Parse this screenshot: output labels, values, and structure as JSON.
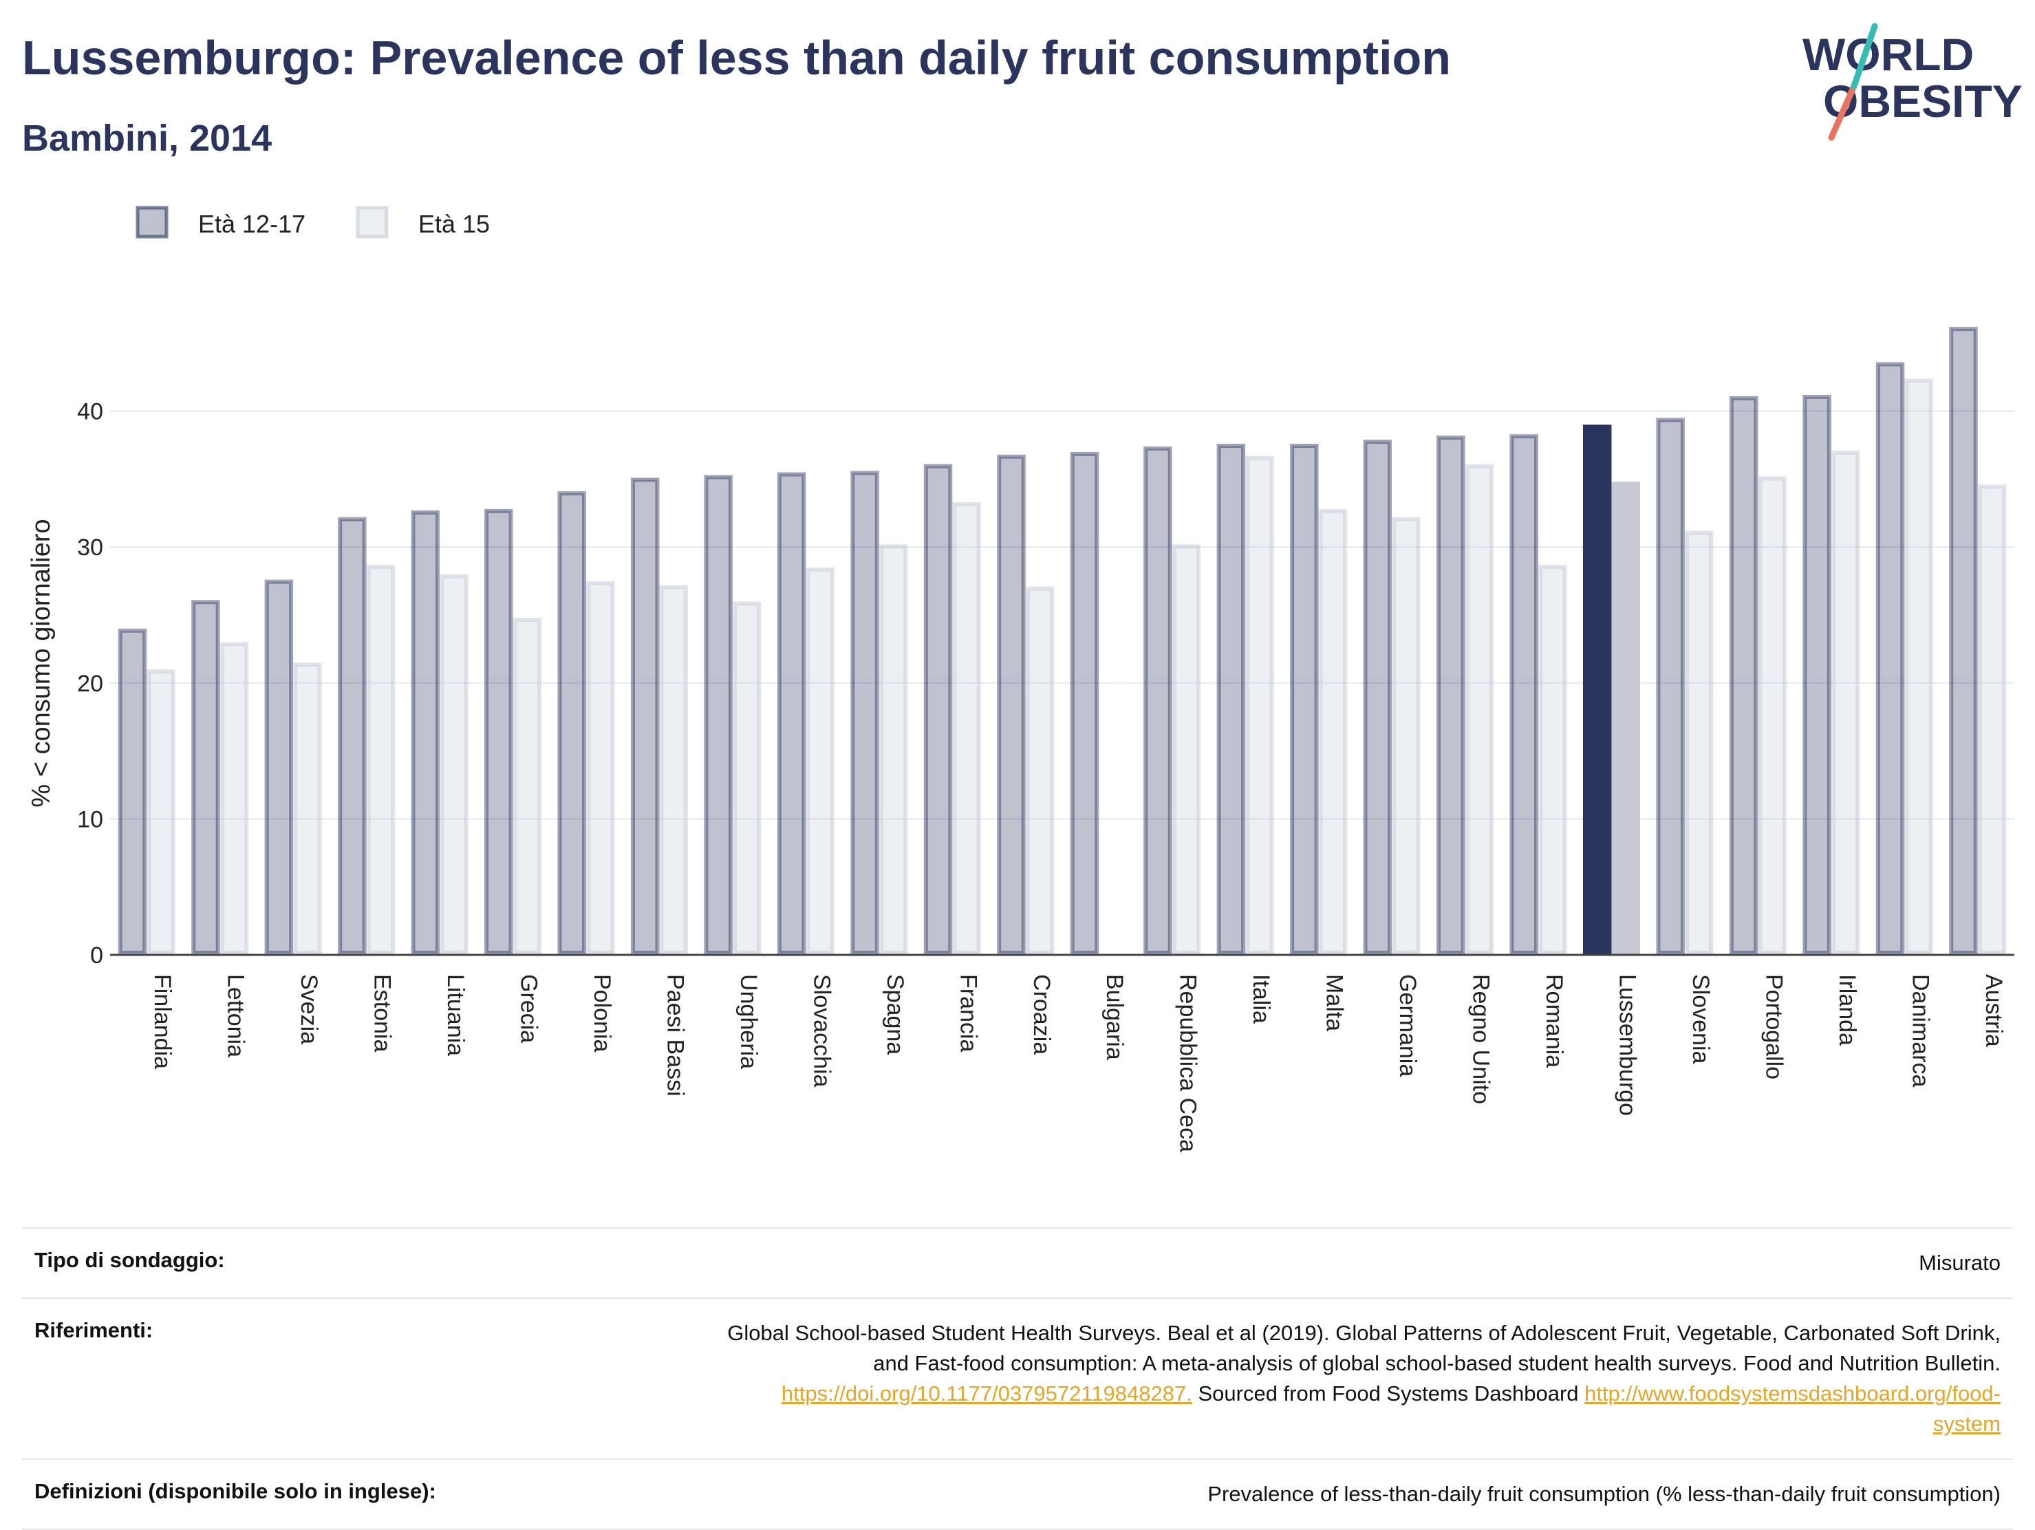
{
  "header": {
    "title": "Lussemburgo: Prevalence of less than daily fruit consumption",
    "subtitle": "Bambini, 2014"
  },
  "logo": {
    "line1": "WORLD",
    "line2": "OBESITY"
  },
  "colors": {
    "series1": "#2a345d",
    "series2": "#c8cad6",
    "highlight": "#2a345d",
    "link": "#e8a427"
  },
  "chart_data": {
    "type": "bar",
    "ylabel": "% < consumo giornaliero",
    "ylim": [
      0,
      50
    ],
    "yticks": [
      0,
      10,
      20,
      30,
      40
    ],
    "grid": true,
    "legend_position": "top-left",
    "highlight_category": "Lussemburgo",
    "categories": [
      "Finlandia",
      "Lettonia",
      "Svezia",
      "Estonia",
      "Lituania",
      "Grecia",
      "Polonia",
      "Paesi Bassi",
      "Ungheria",
      "Slovacchia",
      "Spagna",
      "Francia",
      "Croazia",
      "Bulgaria",
      "Repubblica Ceca",
      "Italia",
      "Malta",
      "Germania",
      "Regno Unito",
      "Romania",
      "Lussemburgo",
      "Slovenia",
      "Portogallo",
      "Irlanda",
      "Danimarca",
      "Austria"
    ],
    "series": [
      {
        "name": "Età 12-17",
        "values": [
          24.0,
          26.1,
          27.6,
          32.2,
          32.7,
          32.8,
          34.1,
          35.1,
          35.3,
          35.5,
          35.6,
          36.1,
          36.8,
          37.0,
          37.4,
          37.6,
          37.6,
          37.9,
          38.2,
          38.3,
          39.0,
          39.5,
          41.1,
          41.2,
          43.6,
          46.2
        ]
      },
      {
        "name": "Età 15",
        "values": [
          21.0,
          23.0,
          21.5,
          28.7,
          28.0,
          24.8,
          27.5,
          27.2,
          26.0,
          28.5,
          30.2,
          33.3,
          27.1,
          null,
          30.2,
          36.7,
          32.8,
          32.2,
          36.1,
          28.7,
          34.8,
          31.2,
          35.2,
          37.1,
          42.4,
          34.6
        ]
      }
    ]
  },
  "meta": {
    "survey_type_label": "Tipo di sondaggio:",
    "survey_type_value": "Misurato",
    "references_label": "Riferimenti:",
    "references_text1": "Global School-based Student Health Surveys. Beal et al (2019). Global Patterns of Adolescent Fruit, Vegetable, Carbonated Soft Drink,",
    "references_text2": "and Fast-food consumption: A meta-analysis of global school-based student health surveys. Food and Nutrition Bulletin.",
    "references_link1": "https://doi.org/10.1177/0379572119848287.",
    "references_text3": " Sourced from Food Systems Dashboard ",
    "references_link2a": "http://www.foodsystemsdashboard.org/food-",
    "references_link2b": "system",
    "definitions_label": "Definizioni (disponibile solo in inglese):",
    "definitions_value": "Prevalence of less-than-daily fruit consumption (% less-than-daily fruit consumption)"
  }
}
